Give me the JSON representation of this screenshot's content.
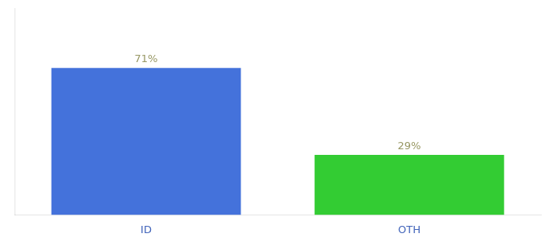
{
  "chart_data": {
    "type": "bar",
    "categories": [
      "ID",
      "OTH"
    ],
    "values": [
      71,
      29
    ],
    "value_labels": [
      "71%",
      "29%"
    ],
    "colors": [
      "#4472db",
      "#33cc33"
    ],
    "ylim": [
      0,
      100
    ],
    "grid": false,
    "data_labels": true,
    "tick_labels": "x"
  }
}
